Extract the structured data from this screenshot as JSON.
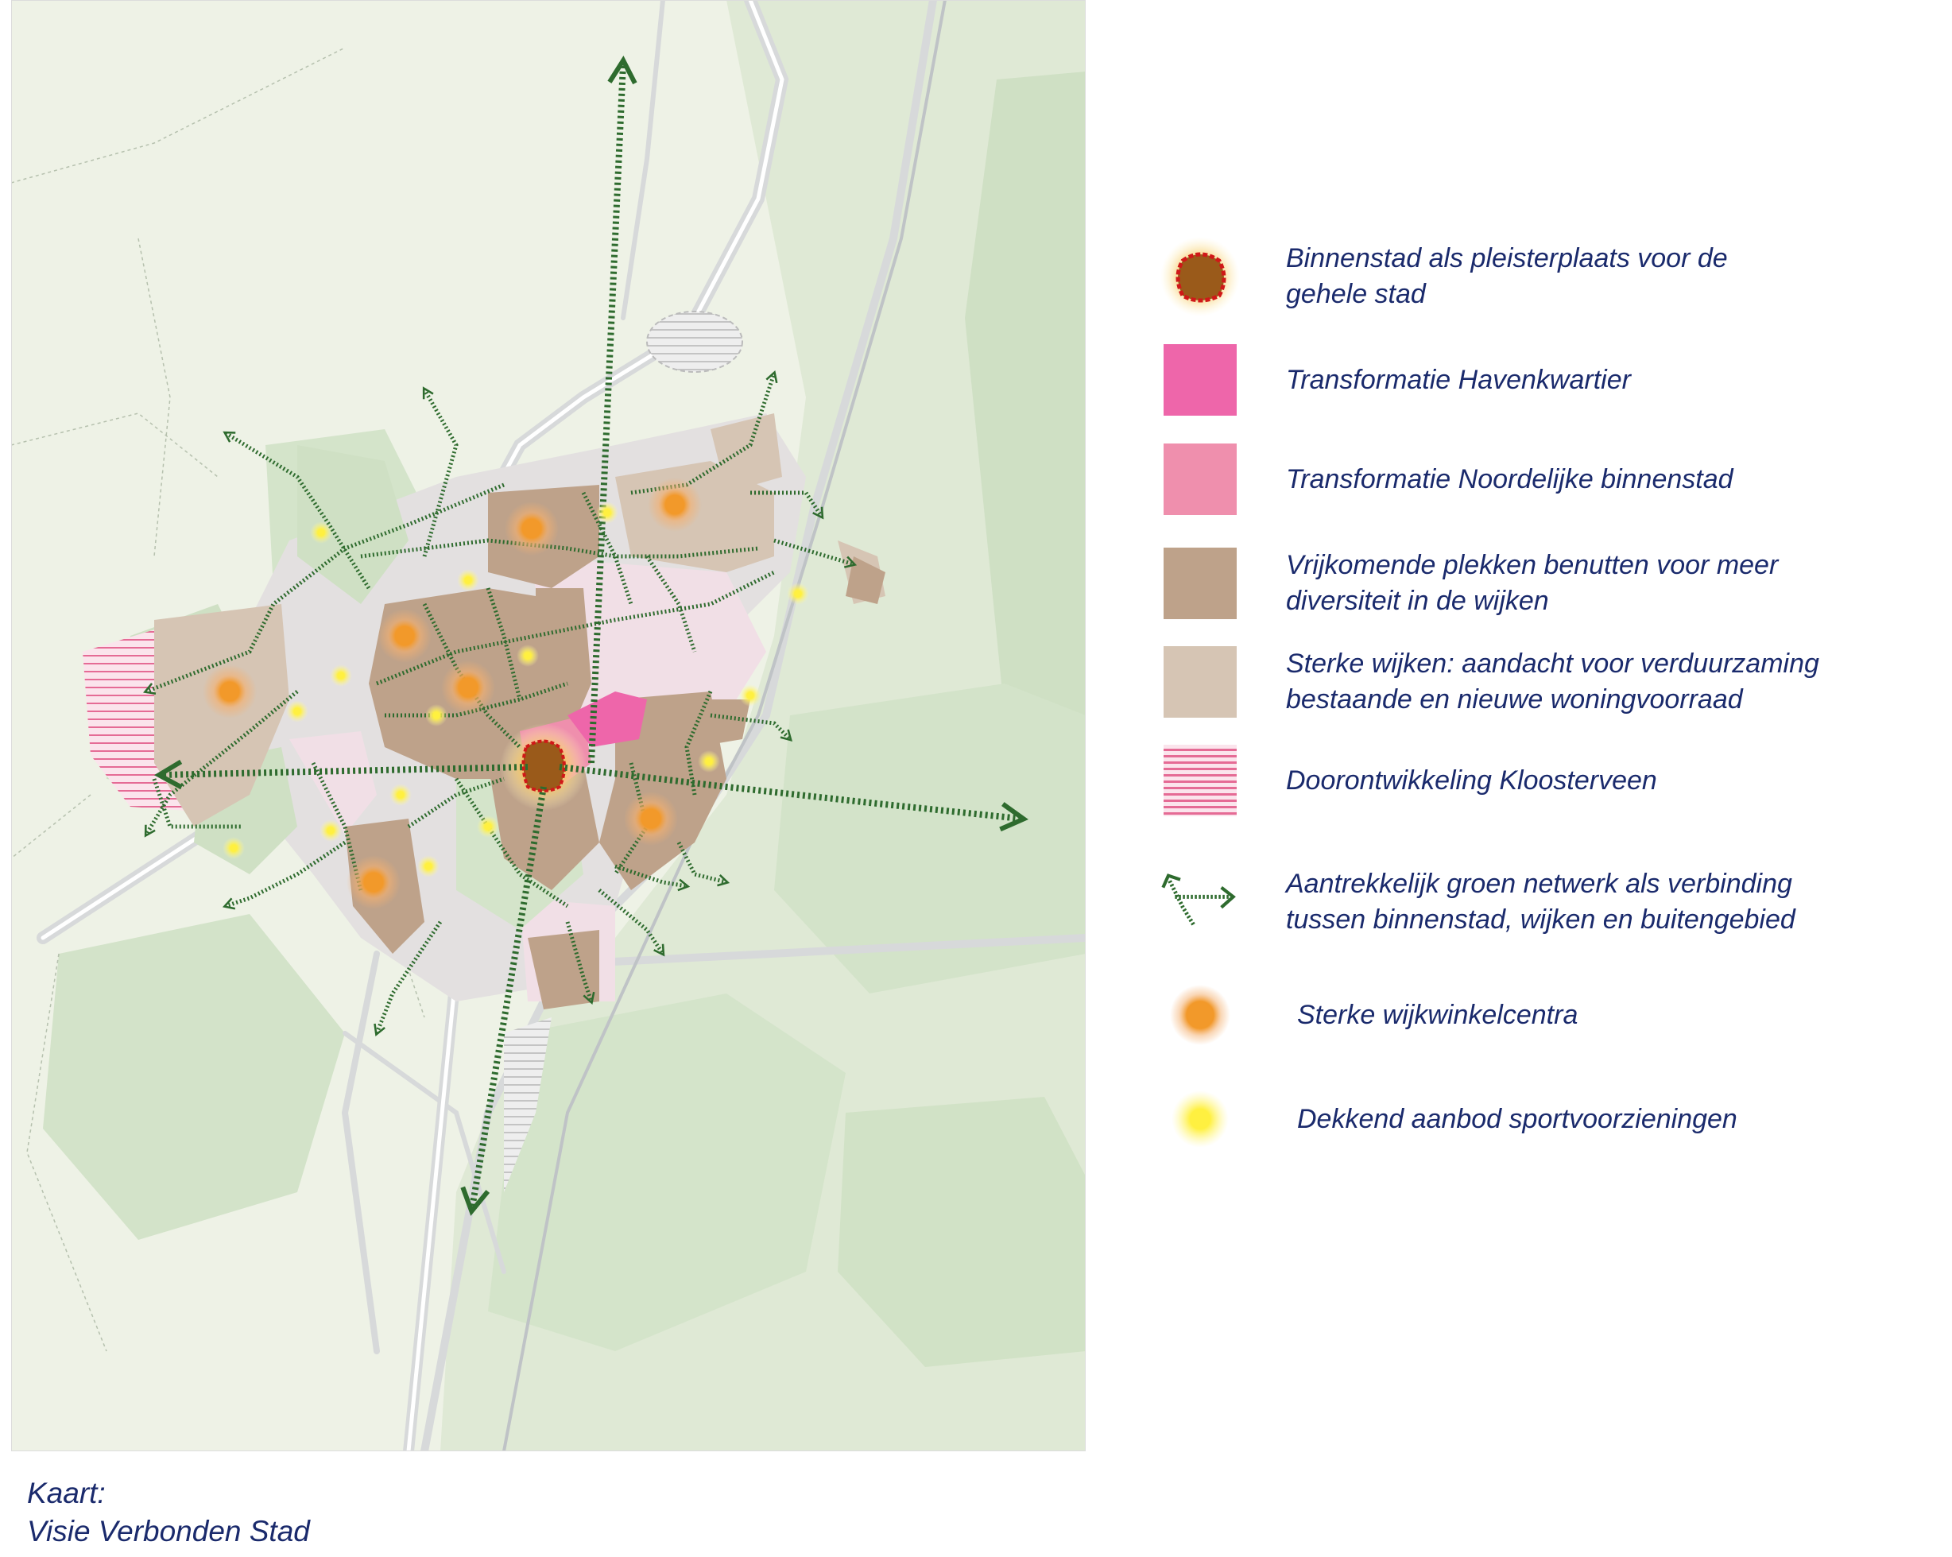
{
  "legend": {
    "items": [
      {
        "icon": "binnenstad-blob-icon",
        "text": "Binnenstad als pleisterplaats voor de\ngehele stad"
      },
      {
        "icon": "magenta-square-icon",
        "color": "#ee66aa",
        "text": "Transformatie Havenkwartier"
      },
      {
        "icon": "pink-square-icon",
        "color": "#ef8fad",
        "text": "Transformatie Noordelijke binnenstad"
      },
      {
        "icon": "brown-square-icon",
        "color": "#bea28a",
        "text": "Vrijkomende plekken benutten voor meer\ndiversiteit in de wijken"
      },
      {
        "icon": "beige-square-icon",
        "color": "#d6c5b4",
        "text": "Sterke wijken: aandacht voor verduurzaming\nbestaande en nieuwe woningvoorraad"
      },
      {
        "icon": "striped-pink-square-icon",
        "color": "#e56b95",
        "text": "Doorontwikkeling Kloosterveen"
      },
      {
        "icon": "green-network-arrow-icon",
        "color": "#2e6b2e",
        "text": "Aantrekkelijk groen netwerk als verbinding\ntussen binnenstad, wijken en buitengebied"
      },
      {
        "icon": "orange-dot-icon",
        "color": "#f2992a",
        "text": "Sterke wijkwinkelcentra"
      },
      {
        "icon": "yellow-dot-icon",
        "color": "#fff040",
        "text": "Dekkend aanbod sportvoorzieningen"
      }
    ]
  },
  "caption": {
    "line1": "Kaart:",
    "line2": "Visie Verbonden Stad"
  },
  "colors": {
    "map_background": "#eef2e6",
    "green_area": "#cfe0c4",
    "network": "#2e6b2e",
    "neighbourhood_brown": "#bea28a",
    "neighbourhood_beige": "#d6c5b4",
    "centre": "#9a5a1a",
    "centre_outline": "#d01818"
  }
}
